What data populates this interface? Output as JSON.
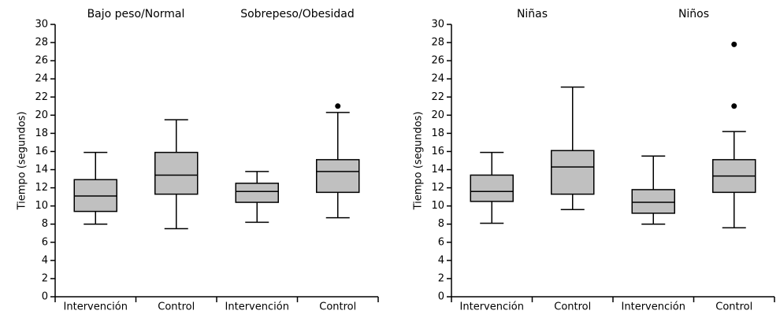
{
  "chart_data": [
    {
      "type": "box",
      "ylabel": "Tiempo (segundos)",
      "groups": [
        "Bajo peso/Normal",
        "Sobrepeso/Obesidad"
      ],
      "categories": [
        "Intervención",
        "Control",
        "Intervención",
        "Control"
      ],
      "boxes": [
        {
          "whislo": 8.0,
          "q1": 9.4,
          "med": 11.1,
          "q3": 12.9,
          "whishi": 15.9
        },
        {
          "whislo": 7.5,
          "q1": 11.3,
          "med": 13.4,
          "q3": 15.9,
          "whishi": 19.5
        },
        {
          "whislo": 8.2,
          "q1": 10.4,
          "med": 11.6,
          "q3": 12.5,
          "whishi": 13.8
        },
        {
          "whislo": 8.7,
          "q1": 11.5,
          "med": 13.8,
          "q3": 15.1,
          "whishi": 20.3,
          "fliers": [
            21.0
          ]
        }
      ],
      "color": "#c0c0c0",
      "ylim": [
        0,
        30
      ],
      "yticks": [
        0,
        2,
        4,
        6,
        8,
        10,
        12,
        14,
        16,
        18,
        20,
        22,
        24,
        26,
        28,
        30
      ]
    },
    {
      "type": "box",
      "ylabel": "Tiempo (segundos)",
      "groups": [
        "Niñas",
        "Niños"
      ],
      "categories": [
        "Intervención",
        "Control",
        "Intervención",
        "Control"
      ],
      "boxes": [
        {
          "whislo": 8.1,
          "q1": 10.5,
          "med": 11.6,
          "q3": 13.4,
          "whishi": 15.9
        },
        {
          "whislo": 9.6,
          "q1": 11.3,
          "med": 14.3,
          "q3": 16.1,
          "whishi": 23.1
        },
        {
          "whislo": 8.0,
          "q1": 9.2,
          "med": 10.4,
          "q3": 11.8,
          "whishi": 15.5
        },
        {
          "whislo": 7.6,
          "q1": 11.5,
          "med": 13.3,
          "q3": 15.1,
          "whishi": 18.2,
          "fliers": [
            21.0,
            27.8
          ]
        }
      ],
      "color": "#c0c0c0",
      "ylim": [
        0,
        30
      ],
      "yticks": [
        0,
        2,
        4,
        6,
        8,
        10,
        12,
        14,
        16,
        18,
        20,
        22,
        24,
        26,
        28,
        30
      ]
    }
  ]
}
